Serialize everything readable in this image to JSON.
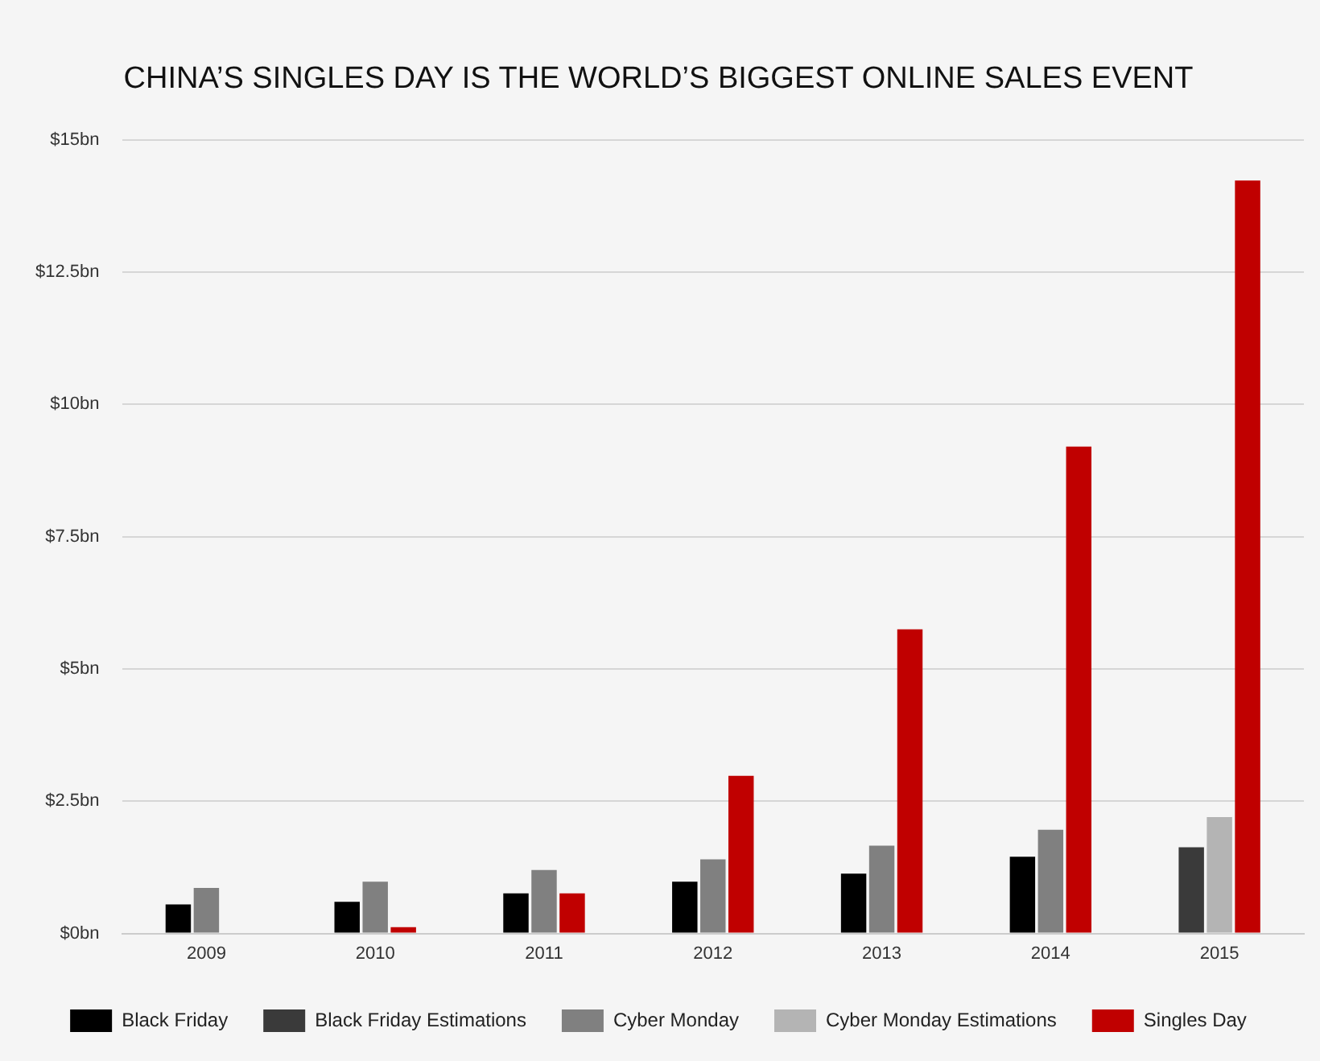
{
  "chart_data": {
    "type": "bar",
    "title": "CHINA’S SINGLES DAY IS THE WORLD’S BIGGEST ONLINE SALES EVENT",
    "categories": [
      "2009",
      "2010",
      "2011",
      "2012",
      "2013",
      "2014",
      "2015"
    ],
    "series": [
      {
        "name": "Black Friday",
        "color": "#000000",
        "values": [
          0.55,
          0.6,
          0.76,
          0.98,
          1.13,
          1.45,
          null
        ]
      },
      {
        "name": "Black Friday Estimations",
        "color": "#3a3a3a",
        "values": [
          null,
          null,
          null,
          null,
          null,
          null,
          1.63
        ]
      },
      {
        "name": "Cyber Monday",
        "color": "#808080",
        "values": [
          0.86,
          0.98,
          1.2,
          1.4,
          1.66,
          1.96,
          null
        ]
      },
      {
        "name": "Cyber Monday Estimations",
        "color": "#b4b4b4",
        "values": [
          null,
          null,
          null,
          null,
          null,
          null,
          2.2
        ]
      },
      {
        "name": "Singles Day",
        "color": "#c00000",
        "values": [
          0,
          0.12,
          0.76,
          2.98,
          5.75,
          9.2,
          14.23
        ]
      }
    ],
    "ylim": [
      0,
      15
    ],
    "yticks": [
      {
        "value": 0,
        "label": "$0bn"
      },
      {
        "value": 2.5,
        "label": "$2.5bn"
      },
      {
        "value": 5,
        "label": "$5bn"
      },
      {
        "value": 7.5,
        "label": "$7.5bn"
      },
      {
        "value": 10,
        "label": "$10bn"
      },
      {
        "value": 12.5,
        "label": "$12.5bn"
      },
      {
        "value": 15,
        "label": "$15bn"
      }
    ],
    "grid": "y",
    "legend": "bottom"
  }
}
